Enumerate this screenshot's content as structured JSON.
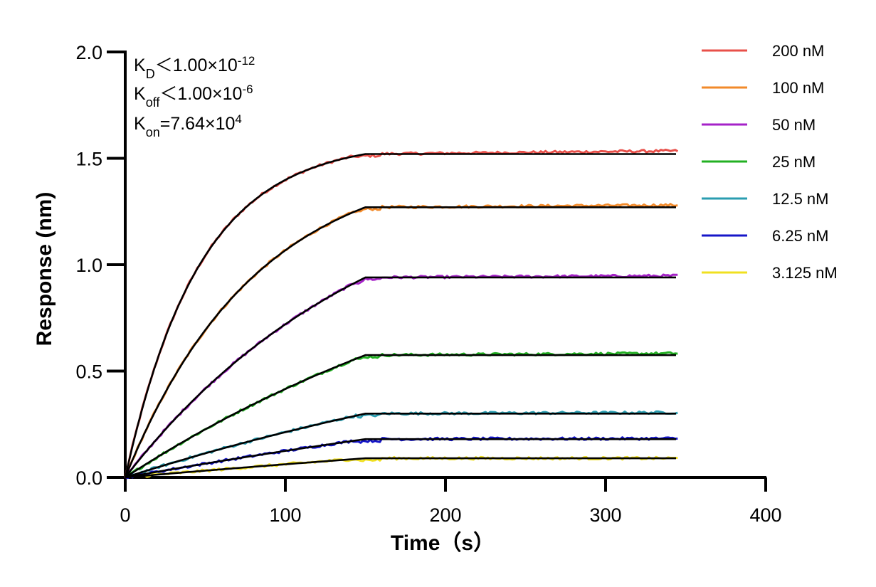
{
  "chart_data": {
    "type": "line",
    "title": "",
    "xlabel": "Time（s）",
    "ylabel": "Response (nm)",
    "xlim": [
      0,
      400
    ],
    "ylim": [
      0,
      2.0
    ],
    "x_ticks": [
      "0",
      "100",
      "200",
      "300",
      "400"
    ],
    "y_ticks": [
      "0.0",
      "0.5",
      "1.0",
      "1.5",
      "2.0"
    ],
    "grid": false,
    "legend_position": "top-right",
    "association_end_s": 150,
    "end_time_s": 345,
    "annotations": {
      "kd": {
        "main": "K",
        "sub": "D",
        "rel": "＜",
        "value": "1.00×10",
        "exp": "-12"
      },
      "koff": {
        "main": "K",
        "sub": "off",
        "rel": "＜",
        "value": "1.00×10",
        "exp": "-6"
      },
      "kon": {
        "main": "K",
        "sub": "on",
        "rel": "=",
        "value": "7.64×10",
        "exp": "4"
      }
    },
    "fit_color": "#000000",
    "series": [
      {
        "name": "200 nM",
        "color": "#e8504a",
        "plateau": 1.52,
        "rate": 0.0215,
        "end_offset": 0.015
      },
      {
        "name": "100 nM",
        "color": "#f28a2a",
        "plateau": 1.27,
        "rate": 0.0123,
        "end_offset": 0.01
      },
      {
        "name": "50 nM",
        "color": "#a522c8",
        "plateau": 0.94,
        "rate": 0.0064,
        "end_offset": 0.008
      },
      {
        "name": "25 nM",
        "color": "#22b022",
        "plateau": 0.575,
        "rate": 0.0035,
        "end_offset": 0.008
      },
      {
        "name": "12.5 nM",
        "color": "#2a9db0",
        "plateau": 0.3,
        "rate": 0.0026,
        "end_offset": 0.005
      },
      {
        "name": "6.25 nM",
        "color": "#1616c8",
        "plateau": 0.18,
        "rate": 0.0016,
        "end_offset": 0.003
      },
      {
        "name": "3.125 nM",
        "color": "#f0e020",
        "plateau": 0.09,
        "rate": 0.0012,
        "end_offset": 0.0
      }
    ]
  }
}
